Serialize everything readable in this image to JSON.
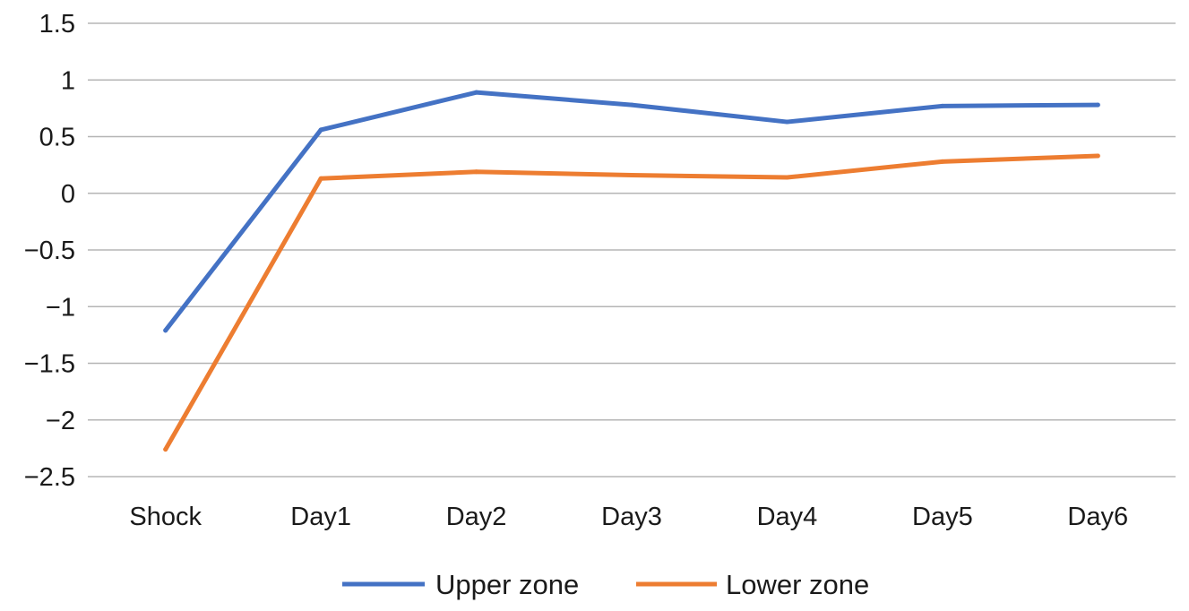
{
  "chart_data": {
    "type": "line",
    "categories": [
      "Shock",
      "Day1",
      "Day2",
      "Day3",
      "Day4",
      "Day5",
      "Day6"
    ],
    "series": [
      {
        "name": "Upper zone",
        "color": "#4472C4",
        "values": [
          -1.21,
          0.56,
          0.89,
          0.78,
          0.63,
          0.77,
          0.78
        ]
      },
      {
        "name": "Lower zone",
        "color": "#ED7D31",
        "values": [
          -2.26,
          0.13,
          0.19,
          0.16,
          0.14,
          0.28,
          0.33
        ]
      }
    ],
    "y_ticks": [
      1.5,
      1,
      0.5,
      0,
      -0.5,
      -1,
      -1.5,
      -2,
      -2.5
    ],
    "y_tick_labels": [
      "1.5",
      "1",
      "0.5",
      "0",
      "−0.5",
      "−1",
      "−1.5",
      "−2",
      "−2.5"
    ],
    "ylim": [
      -2.5,
      1.5
    ],
    "grid": true,
    "legend": "bottom",
    "title": "",
    "xlabel": "",
    "ylabel": ""
  }
}
